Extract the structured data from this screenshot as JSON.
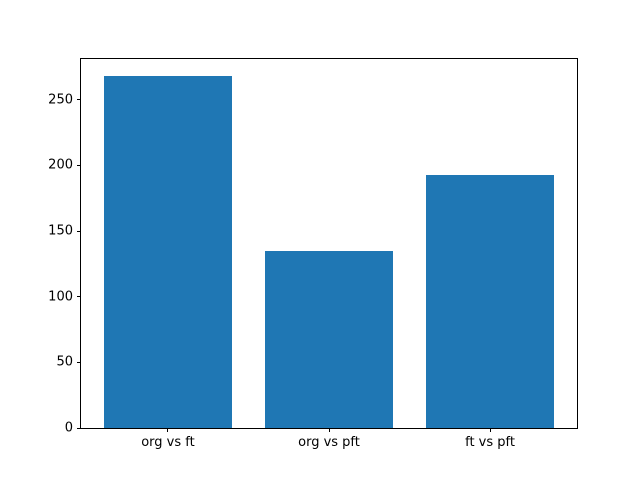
{
  "figure": {
    "background": "#ffffff"
  },
  "chart_data": {
    "type": "bar",
    "categories": [
      "org vs ft",
      "org vs pft",
      "ft vs pft"
    ],
    "values": [
      268,
      135,
      193
    ],
    "title": "",
    "xlabel": "",
    "ylabel": "",
    "ylim": [
      0,
      281
    ],
    "yticks": [
      0,
      50,
      100,
      150,
      200,
      250
    ],
    "bar_color": "#1f77b4",
    "bar_width_fraction": 0.8,
    "grid": false,
    "legend": false
  }
}
